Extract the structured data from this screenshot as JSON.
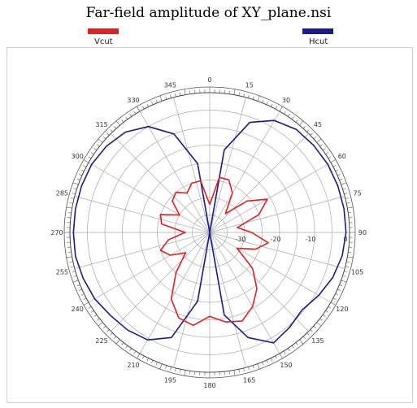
{
  "title": "Far-field amplitude of XY_plane.nsi",
  "legend": [
    {
      "label": "Vcut",
      "color": "#e32020"
    },
    {
      "label": "Hcut",
      "color": "#1a1a8c"
    }
  ],
  "chart_data": {
    "type": "polar-line",
    "title": "Far-field amplitude of XY_plane.nsi",
    "angle_ticks": [
      "0",
      "15",
      "30",
      "45",
      "60",
      "75",
      "90",
      "105",
      "120",
      "135",
      "150",
      "165",
      "180",
      "195",
      "210",
      "225",
      "240",
      "255",
      "270",
      "285",
      "300",
      "315",
      "330",
      "345"
    ],
    "radial_ticks": [
      "-30",
      "-20",
      "-10",
      "0"
    ],
    "radial_range": [
      -40,
      0
    ],
    "grid": true,
    "legend_position": "top",
    "series": [
      {
        "name": "Hcut",
        "color": "#1a1a8c",
        "theta": [
          0,
          10,
          20,
          30,
          40,
          50,
          60,
          70,
          80,
          90,
          100,
          110,
          120,
          130,
          140,
          150,
          160,
          170,
          180,
          190,
          200,
          210,
          220,
          230,
          240,
          250,
          260,
          270,
          280,
          290,
          300,
          310,
          320,
          330,
          340,
          350,
          360
        ],
        "r": [
          -40,
          -16,
          -6.5,
          -3,
          -1.5,
          -1.2,
          -1,
          -1,
          -1,
          -1,
          -1.5,
          -2.5,
          -4,
          -5.5,
          -4.5,
          -3.5,
          -8,
          -16,
          -40,
          -20,
          -8,
          -4.5,
          -3.5,
          -3,
          -2,
          -1.5,
          -1,
          -1,
          -1,
          -1,
          -1,
          -1.5,
          -2.5,
          -5,
          -10,
          -20,
          -40
        ]
      },
      {
        "name": "Vcut",
        "color": "#e32020",
        "theta": [
          0,
          10,
          20,
          30,
          40,
          50,
          60,
          70,
          80,
          90,
          100,
          110,
          120,
          130,
          140,
          150,
          160,
          170,
          180,
          190,
          200,
          210,
          220,
          230,
          240,
          250,
          260,
          270,
          280,
          290,
          300,
          310,
          320,
          330,
          340,
          350,
          360
        ],
        "r": [
          -32,
          -24,
          -24,
          -27,
          -33,
          -26,
          -21,
          -25,
          -32,
          -28,
          -23,
          -26,
          -31,
          -24,
          -19,
          -15.5,
          -13,
          -14,
          -16,
          -13,
          -14,
          -18,
          -25,
          -31,
          -27,
          -25,
          -28,
          -33,
          -26,
          -25,
          -30,
          -26,
          -25,
          -27,
          -25,
          -25,
          -32
        ]
      }
    ]
  }
}
